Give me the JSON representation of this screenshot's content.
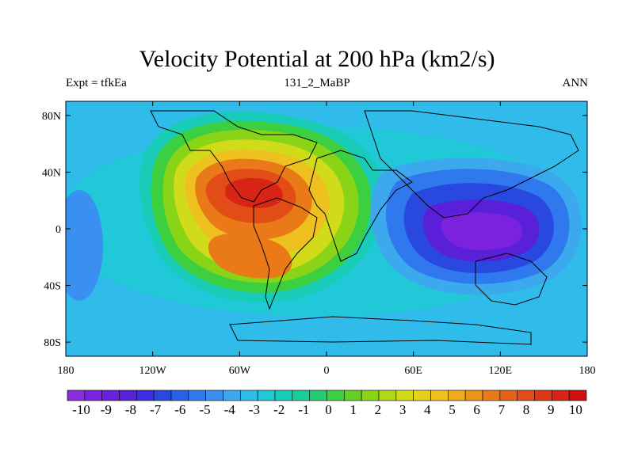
{
  "header": {
    "title": "Velocity Potential at 200 hPa (km2/s)",
    "left_label": "Expt = tfkEa",
    "center_label": "131_2_MaBP",
    "right_label": "ANN"
  },
  "axes": {
    "x_ticks": [
      {
        "value": -180,
        "label": "180"
      },
      {
        "value": -120,
        "label": "120W"
      },
      {
        "value": -60,
        "label": "60W"
      },
      {
        "value": 0,
        "label": "0"
      },
      {
        "value": 60,
        "label": "60E"
      },
      {
        "value": 120,
        "label": "120E"
      },
      {
        "value": 180,
        "label": "180"
      }
    ],
    "y_ticks": [
      {
        "value": 80,
        "label": "80N"
      },
      {
        "value": 40,
        "label": "40N"
      },
      {
        "value": 0,
        "label": "0"
      },
      {
        "value": -40,
        "label": "40S"
      },
      {
        "value": -80,
        "label": "80S"
      }
    ],
    "lon_range": [
      -180,
      180
    ],
    "lat_range": [
      -90,
      90
    ]
  },
  "colorbar": {
    "labels": [
      "-10",
      "-9",
      "-8",
      "-7",
      "-6",
      "-5",
      "-4",
      "-3",
      "-2",
      "-1",
      "0",
      "1",
      "2",
      "3",
      "4",
      "5",
      "6",
      "7",
      "8",
      "9",
      "10"
    ],
    "colors": [
      "#8a2be2",
      "#7a22de",
      "#6a1fdc",
      "#5a1fd8",
      "#3d2de0",
      "#2848e0",
      "#2a60e6",
      "#2f78ee",
      "#3a90f0",
      "#3ca8ee",
      "#30bcea",
      "#20c8d8",
      "#18ccb8",
      "#1acc98",
      "#22cc70",
      "#3cd040",
      "#62d020",
      "#8ad418",
      "#b0d818",
      "#d0dc1a",
      "#e6d01c",
      "#eec020",
      "#f0aa1e",
      "#ee921a",
      "#ea7a18",
      "#e66216",
      "#e24c16",
      "#dc3814",
      "#d82414",
      "#d01010"
    ]
  },
  "map_data": {
    "field": "velocity potential, 200 hPa annual mean",
    "centers": [
      {
        "lon": -55,
        "lat": 20,
        "value": 7.5,
        "note": "positive maximum over South/Central America"
      },
      {
        "lon": -60,
        "lat": -20,
        "value": 6
      },
      {
        "lon": 115,
        "lat": -8,
        "value": -8,
        "note": "negative minimum over Indonesia / Maritime Continent"
      }
    ]
  }
}
